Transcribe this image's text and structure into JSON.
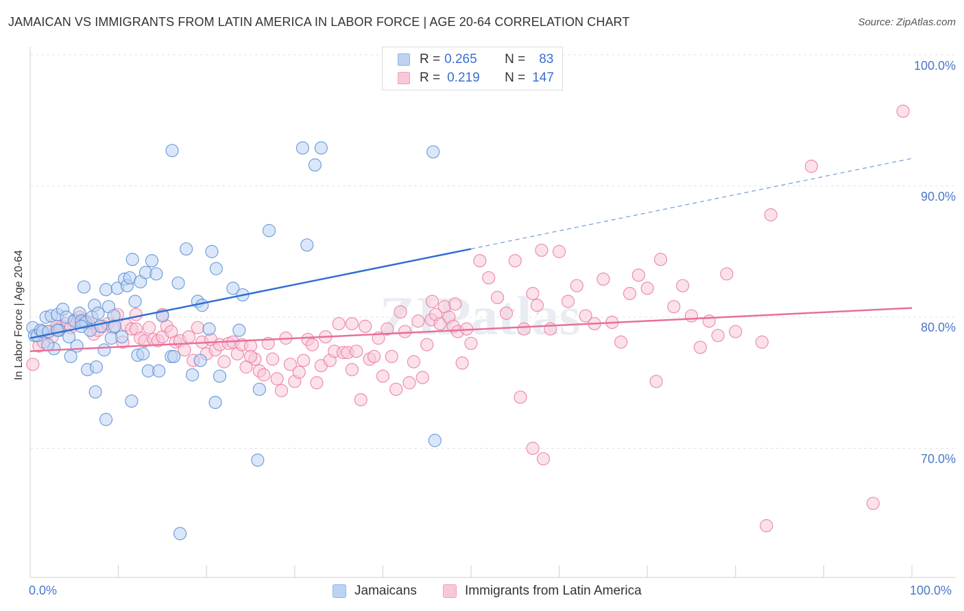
{
  "title": "JAMAICAN VS IMMIGRANTS FROM LATIN AMERICA IN LABOR FORCE | AGE 20-64 CORRELATION CHART",
  "source": "Source: ZipAtlas.com",
  "watermark": "ZIPatlas",
  "legend": {
    "r_label": "R =",
    "n_label": "N =",
    "rows": [
      {
        "r": "0.265",
        "n": "83",
        "color": "#8fb5ea",
        "fill": "#bdd3f2"
      },
      {
        "r": "0.219",
        "n": "147",
        "color": "#f0a0bc",
        "fill": "#f8c8d8"
      }
    ]
  },
  "bottom_legend": [
    {
      "label": "Jamaicans",
      "color": "#8fb5ea",
      "fill": "#bdd3f2"
    },
    {
      "label": "Immigrants from Latin America",
      "color": "#f0a0bc",
      "fill": "#f8c8d8"
    }
  ],
  "chart_data": {
    "type": "scatter",
    "title": "JAMAICAN VS IMMIGRANTS FROM LATIN AMERICA IN LABOR FORCE | AGE 20-64 CORRELATION CHART",
    "xlabel": "",
    "ylabel": "In Labor Force | Age 20-64",
    "xlim": [
      0,
      100
    ],
    "ylim": [
      60.5,
      102
    ],
    "x_tick_labels": [
      "0.0%",
      "100.0%"
    ],
    "y_ticks": [
      70,
      80,
      90,
      100
    ],
    "y_tick_labels": [
      "70.0%",
      "80.0%",
      "90.0%",
      "100.0%"
    ],
    "grid": true,
    "series": [
      {
        "name": "Jamaicans",
        "color": "#5b8fd8",
        "fill": "#bdd3f2",
        "trend": {
          "x0": 0,
          "y0": 78.4,
          "x1": 50,
          "y1": 85.2,
          "dashed_to_x": 100,
          "dashed_to_y": 92.1
        },
        "points": [
          [
            0.3,
            79.2
          ],
          [
            0.5,
            78.6
          ],
          [
            0.8,
            78.6
          ],
          [
            1.2,
            79.0
          ],
          [
            1.4,
            78.9
          ],
          [
            1.8,
            80.0
          ],
          [
            2.1,
            78.9
          ],
          [
            2.4,
            80.1
          ],
          [
            2.7,
            77.6
          ],
          [
            3.1,
            80.2
          ],
          [
            3.3,
            79.0
          ],
          [
            3.7,
            80.6
          ],
          [
            4.1,
            80.0
          ],
          [
            4.4,
            78.5
          ],
          [
            4.6,
            77.0
          ],
          [
            5.0,
            79.7
          ],
          [
            5.3,
            77.8
          ],
          [
            5.6,
            80.3
          ],
          [
            5.8,
            79.7
          ],
          [
            6.1,
            82.3
          ],
          [
            6.3,
            79.6
          ],
          [
            6.5,
            76.0
          ],
          [
            6.8,
            79.0
          ],
          [
            7.0,
            80.0
          ],
          [
            7.3,
            80.9
          ],
          [
            7.5,
            76.2
          ],
          [
            7.7,
            80.3
          ],
          [
            8.0,
            79.3
          ],
          [
            8.4,
            77.5
          ],
          [
            8.6,
            82.1
          ],
          [
            8.9,
            80.8
          ],
          [
            9.2,
            78.4
          ],
          [
            9.5,
            80.1
          ],
          [
            9.9,
            82.2
          ],
          [
            10.4,
            78.5
          ],
          [
            10.7,
            82.9
          ],
          [
            11.0,
            82.4
          ],
          [
            11.3,
            83.0
          ],
          [
            11.6,
            84.4
          ],
          [
            11.9,
            81.2
          ],
          [
            12.2,
            77.1
          ],
          [
            12.5,
            82.7
          ],
          [
            12.8,
            77.2
          ],
          [
            13.1,
            83.4
          ],
          [
            13.4,
            75.9
          ],
          [
            13.8,
            84.3
          ],
          [
            14.3,
            83.3
          ],
          [
            14.6,
            75.9
          ],
          [
            15.0,
            80.1
          ],
          [
            16.0,
            77.0
          ],
          [
            16.3,
            77.0
          ],
          [
            16.8,
            82.6
          ],
          [
            17.7,
            85.2
          ],
          [
            18.4,
            75.6
          ],
          [
            19.0,
            81.2
          ],
          [
            19.3,
            76.7
          ],
          [
            19.5,
            80.9
          ],
          [
            20.3,
            79.1
          ],
          [
            20.6,
            85.0
          ],
          [
            21.1,
            83.7
          ],
          [
            21.5,
            75.5
          ],
          [
            21.0,
            73.5
          ],
          [
            23.0,
            82.2
          ],
          [
            23.7,
            79.0
          ],
          [
            24.1,
            81.7
          ],
          [
            26.0,
            74.5
          ],
          [
            25.8,
            69.1
          ],
          [
            27.1,
            86.6
          ],
          [
            31.4,
            85.5
          ],
          [
            30.9,
            92.9
          ],
          [
            33.0,
            92.9
          ],
          [
            32.3,
            91.6
          ],
          [
            45.7,
            92.6
          ],
          [
            45.9,
            70.6
          ],
          [
            16.1,
            92.7
          ],
          [
            17.0,
            63.5
          ],
          [
            11.5,
            73.6
          ],
          [
            8.6,
            72.2
          ],
          [
            7.4,
            74.3
          ],
          [
            5.8,
            79.3
          ],
          [
            3.1,
            79.0
          ],
          [
            2.0,
            77.9
          ],
          [
            9.6,
            79.3
          ]
        ]
      },
      {
        "name": "Immigrants from Latin America",
        "color": "#ec7aa0",
        "fill": "#f8c8d8",
        "trend": {
          "x0": 0,
          "y0": 77.4,
          "x1": 100,
          "y1": 80.7
        },
        "points": [
          [
            0.3,
            76.4
          ],
          [
            1.0,
            77.8
          ],
          [
            1.5,
            78.1
          ],
          [
            2.0,
            78.9
          ],
          [
            2.5,
            78.5
          ],
          [
            3.0,
            79.1
          ],
          [
            3.6,
            79.3
          ],
          [
            4.1,
            79.5
          ],
          [
            4.6,
            79.2
          ],
          [
            5.1,
            79.8
          ],
          [
            5.6,
            80.0
          ],
          [
            6.1,
            79.8
          ],
          [
            6.6,
            79.6
          ],
          [
            7.2,
            78.7
          ],
          [
            7.7,
            79.0
          ],
          [
            8.3,
            79.3
          ],
          [
            8.8,
            79.5
          ],
          [
            9.4,
            79.2
          ],
          [
            9.9,
            80.2
          ],
          [
            10.5,
            78.1
          ],
          [
            10.9,
            79.4
          ],
          [
            11.5,
            79.1
          ],
          [
            12.0,
            79.1
          ],
          [
            12.5,
            78.4
          ],
          [
            13.0,
            78.2
          ],
          [
            13.5,
            79.2
          ],
          [
            14.0,
            78.3
          ],
          [
            14.5,
            78.2
          ],
          [
            15.0,
            78.5
          ],
          [
            15.5,
            79.3
          ],
          [
            16.0,
            78.9
          ],
          [
            16.5,
            78.1
          ],
          [
            17.0,
            78.2
          ],
          [
            17.5,
            77.5
          ],
          [
            18.0,
            78.5
          ],
          [
            18.5,
            76.7
          ],
          [
            19.0,
            79.2
          ],
          [
            19.5,
            78.1
          ],
          [
            20.0,
            77.2
          ],
          [
            20.5,
            78.3
          ],
          [
            21.0,
            77.5
          ],
          [
            21.5,
            77.9
          ],
          [
            22.0,
            76.6
          ],
          [
            22.5,
            78.0
          ],
          [
            23.0,
            78.1
          ],
          [
            23.5,
            77.2
          ],
          [
            24.0,
            77.9
          ],
          [
            24.5,
            76.2
          ],
          [
            25.0,
            77.8
          ],
          [
            25.5,
            76.8
          ],
          [
            26.0,
            75.9
          ],
          [
            26.5,
            75.6
          ],
          [
            27.0,
            78.0
          ],
          [
            27.5,
            76.8
          ],
          [
            28.0,
            75.3
          ],
          [
            28.5,
            74.4
          ],
          [
            29.0,
            78.4
          ],
          [
            29.5,
            76.4
          ],
          [
            30.0,
            75.1
          ],
          [
            30.5,
            75.8
          ],
          [
            31.0,
            76.7
          ],
          [
            31.5,
            78.3
          ],
          [
            32.0,
            77.9
          ],
          [
            32.5,
            75.0
          ],
          [
            33.0,
            76.3
          ],
          [
            33.5,
            78.5
          ],
          [
            34.0,
            76.7
          ],
          [
            34.5,
            77.4
          ],
          [
            35.0,
            79.5
          ],
          [
            35.5,
            77.3
          ],
          [
            36.0,
            77.3
          ],
          [
            36.5,
            76.0
          ],
          [
            37.0,
            77.4
          ],
          [
            37.5,
            73.7
          ],
          [
            38.0,
            79.3
          ],
          [
            38.5,
            76.8
          ],
          [
            39.0,
            77.0
          ],
          [
            39.5,
            78.4
          ],
          [
            40.0,
            75.5
          ],
          [
            40.5,
            79.1
          ],
          [
            41.0,
            77.0
          ],
          [
            41.5,
            74.5
          ],
          [
            42.0,
            80.4
          ],
          [
            42.5,
            78.9
          ],
          [
            43.0,
            75.0
          ],
          [
            43.5,
            76.6
          ],
          [
            44.0,
            79.7
          ],
          [
            44.5,
            75.4
          ],
          [
            45.0,
            77.9
          ],
          [
            45.5,
            79.8
          ],
          [
            46.0,
            80.2
          ],
          [
            46.5,
            79.5
          ],
          [
            47.0,
            80.8
          ],
          [
            47.5,
            80.0
          ],
          [
            48.0,
            79.3
          ],
          [
            48.5,
            78.9
          ],
          [
            49.0,
            76.5
          ],
          [
            49.5,
            79.1
          ],
          [
            50.0,
            78.0
          ],
          [
            51.0,
            84.3
          ],
          [
            52.0,
            83.0
          ],
          [
            53.0,
            81.5
          ],
          [
            54.0,
            80.3
          ],
          [
            55.0,
            84.3
          ],
          [
            55.6,
            73.9
          ],
          [
            56.0,
            79.1
          ],
          [
            57.0,
            81.8
          ],
          [
            57.5,
            80.9
          ],
          [
            58.0,
            85.1
          ],
          [
            59.0,
            79.1
          ],
          [
            60.0,
            85.0
          ],
          [
            61.0,
            81.2
          ],
          [
            62.0,
            82.4
          ],
          [
            63.0,
            80.1
          ],
          [
            64.0,
            79.5
          ],
          [
            65.0,
            82.9
          ],
          [
            66.0,
            79.6
          ],
          [
            67.0,
            78.1
          ],
          [
            68.0,
            81.8
          ],
          [
            69.0,
            83.2
          ],
          [
            70.0,
            82.2
          ],
          [
            71.0,
            75.1
          ],
          [
            71.5,
            84.4
          ],
          [
            73.0,
            80.8
          ],
          [
            74.0,
            82.4
          ],
          [
            75.0,
            80.1
          ],
          [
            76.0,
            77.7
          ],
          [
            77.0,
            79.7
          ],
          [
            78.0,
            78.6
          ],
          [
            79.0,
            83.3
          ],
          [
            80.0,
            78.9
          ],
          [
            83.0,
            78.1
          ],
          [
            83.5,
            64.1
          ],
          [
            84.0,
            87.8
          ],
          [
            88.6,
            91.5
          ],
          [
            95.6,
            65.8
          ],
          [
            99.0,
            95.7
          ],
          [
            57.0,
            70.0
          ],
          [
            58.2,
            69.2
          ],
          [
            48.2,
            81.0
          ],
          [
            45.6,
            81.2
          ],
          [
            36.5,
            79.5
          ],
          [
            25.0,
            77.0
          ],
          [
            15.0,
            80.2
          ],
          [
            12.0,
            80.2
          ],
          [
            6.0,
            79.6
          ],
          [
            3.0,
            79.3
          ]
        ]
      }
    ]
  }
}
